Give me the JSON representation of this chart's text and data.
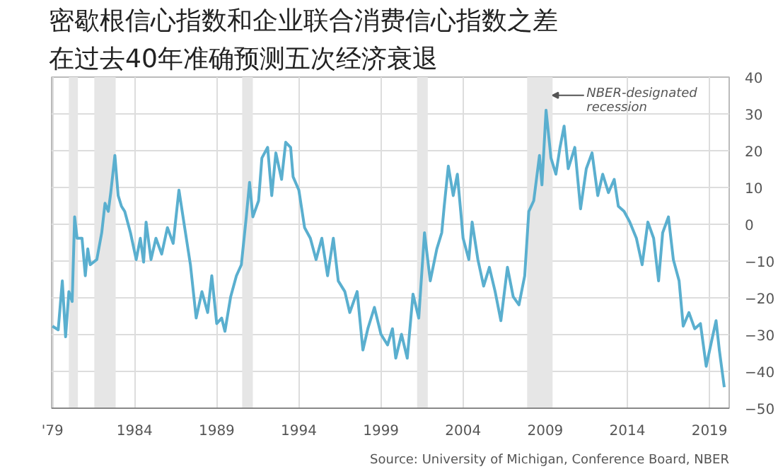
{
  "chart_data": {
    "type": "line",
    "title": "密歇根信心指数和企业联合消费信心指数之差",
    "subtitle": "在过去40年准确预测五次经济衰退",
    "x": [
      1979.0,
      1979.35,
      1979.6,
      1979.8,
      1980.0,
      1980.2,
      1980.35,
      1980.5,
      1980.8,
      1981.0,
      1981.15,
      1981.3,
      1981.7,
      1982.0,
      1982.2,
      1982.4,
      1982.55,
      1982.8,
      1983.0,
      1983.2,
      1983.4,
      1983.75,
      1984.1,
      1984.35,
      1984.55,
      1984.7,
      1985.0,
      1985.3,
      1985.65,
      1986.0,
      1986.35,
      1986.7,
      1987.05,
      1987.4,
      1987.75,
      1988.1,
      1988.45,
      1988.7,
      1989.0,
      1989.3,
      1989.5,
      1989.85,
      1990.2,
      1990.5,
      1990.8,
      1991.0,
      1991.2,
      1991.55,
      1991.75,
      1992.1,
      1992.35,
      1992.6,
      1992.95,
      1993.2,
      1993.5,
      1993.65,
      1994.0,
      1994.35,
      1994.7,
      1995.05,
      1995.4,
      1995.75,
      1996.1,
      1996.4,
      1996.8,
      1997.1,
      1997.55,
      1997.9,
      1998.2,
      1998.6,
      1999.0,
      1999.4,
      1999.7,
      1999.9,
      2000.25,
      2000.6,
      2000.95,
      2001.3,
      2001.65,
      2002.0,
      2002.4,
      2002.7,
      2002.85,
      2003.1,
      2003.4,
      2003.65,
      2003.9,
      2004.0,
      2004.35,
      2004.55,
      2004.9,
      2005.25,
      2005.6,
      2005.95,
      2006.3,
      2006.7,
      2007.05,
      2007.4,
      2007.75,
      2008.0,
      2008.3,
      2008.65,
      2008.8,
      2009.05,
      2009.35,
      2009.65,
      2009.9,
      2010.15,
      2010.4,
      2010.8,
      2011.15,
      2011.5,
      2011.85,
      2012.2,
      2012.5,
      2012.85,
      2013.2,
      2013.45,
      2013.8,
      2014.15,
      2014.55,
      2014.9,
      2015.25,
      2015.6,
      2015.9,
      2016.15,
      2016.5,
      2016.8,
      2017.15,
      2017.4,
      2017.75,
      2018.1,
      2018.45,
      2018.8,
      2019.15,
      2019.4,
      2019.6,
      2019.9
    ],
    "series": [
      {
        "color": "#5aafcf",
        "values": [
          -27.7,
          -28.7,
          -15.4,
          -30.6,
          -18.3,
          -21,
          2,
          -3.8,
          -3.8,
          -14,
          -6.7,
          -11,
          -9.6,
          -2.3,
          5.7,
          3.5,
          8.6,
          18.7,
          7.8,
          4.9,
          3.5,
          -2.3,
          -9.6,
          -3.8,
          -10.3,
          0.6,
          -9.6,
          -3.8,
          -8.1,
          -0.9,
          -5.2,
          9.3,
          -0.9,
          -11,
          -25.5,
          -18.3,
          -24,
          -14,
          -27,
          -25.5,
          -29.1,
          -19.7,
          -14,
          -11,
          2,
          11.4,
          2,
          6.4,
          18,
          20.9,
          7.8,
          19.4,
          12.2,
          22.3,
          20.9,
          12.9,
          9.3,
          -0.9,
          -3.8,
          -9.6,
          -3.8,
          -14,
          -3.8,
          -15.4,
          -18.3,
          -24,
          -18.3,
          -34.2,
          -28.4,
          -22.6,
          -29.9,
          -32.8,
          -28.4,
          -36.4,
          -29.9,
          -36.4,
          -19,
          -25.5,
          -2.3,
          -15.4,
          -6.7,
          -2.3,
          4.9,
          15.8,
          7.8,
          13.6,
          1.3,
          -3.8,
          -9.6,
          0.6,
          -9.6,
          -16.8,
          -11.7,
          -18.3,
          -26.2,
          -11.7,
          -19.7,
          -21.9,
          -14,
          3.5,
          6.4,
          18.7,
          10.7,
          31,
          18,
          13.6,
          20.9,
          26.7,
          15.1,
          20.9,
          4.2,
          15.1,
          19.4,
          7.8,
          13.6,
          8.6,
          12.2,
          4.9,
          3.5,
          0.6,
          -3.8,
          -11,
          0.6,
          -3.8,
          -15.4,
          -2.3,
          2,
          -9.6,
          -15.4,
          -27.7,
          -24,
          -28.4,
          -27,
          -38.6,
          -31.3,
          -26.2,
          -34.2,
          -44.3
        ]
      }
    ],
    "xlim": [
      1978.95,
      2020.2
    ],
    "ylim": [
      -50,
      40
    ],
    "xticks": [
      {
        "value": 1979,
        "label": "'79"
      },
      1984,
      1989,
      1994,
      1999,
      2004,
      2009,
      2014,
      2019
    ],
    "yticks": [
      -50,
      -40,
      -30,
      -20,
      -10,
      0,
      10,
      20,
      30,
      40
    ],
    "bands": [
      {
        "axis": "x",
        "from": 1980.0,
        "to": 1980.55,
        "color": "#e6e6e6"
      },
      {
        "axis": "x",
        "from": 1981.55,
        "to": 1982.85,
        "color": "#e6e6e6"
      },
      {
        "axis": "x",
        "from": 1990.55,
        "to": 1991.2,
        "color": "#e6e6e6"
      },
      {
        "axis": "x",
        "from": 2001.2,
        "to": 2001.85,
        "color": "#e6e6e6"
      },
      {
        "axis": "x",
        "from": 2007.9,
        "to": 2009.45,
        "color": "#e6e6e6",
        "label": "NBER-designated\nrecession"
      }
    ],
    "annotations": [
      "Source: University of Michigan, Conference Board, NBER"
    ],
    "grid": true
  }
}
